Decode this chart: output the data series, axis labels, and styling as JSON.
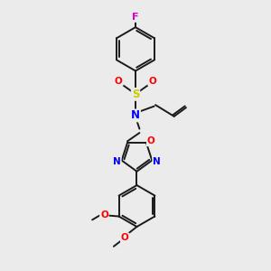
{
  "bg_color": "#ebebeb",
  "bond_color": "#1a1a1a",
  "atom_colors": {
    "F": "#dd00cc",
    "S": "#cccc00",
    "O": "#ff0000",
    "N": "#0000ff",
    "C": "#1a1a1a"
  },
  "figsize": [
    3.0,
    3.0
  ],
  "dpi": 100
}
